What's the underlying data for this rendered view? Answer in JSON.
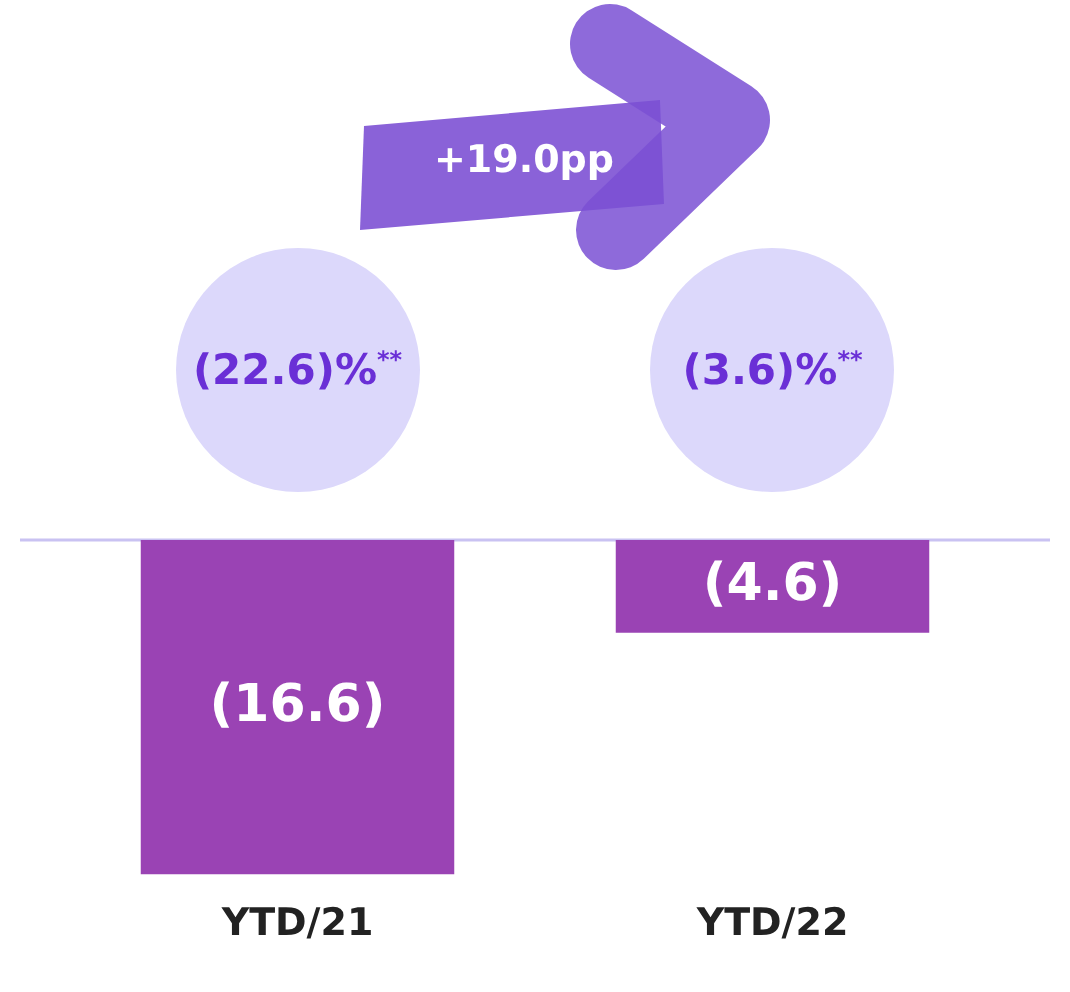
{
  "chart_data": {
    "type": "bar",
    "categories": [
      "YTD/21",
      "YTD/22"
    ],
    "values": [
      -16.6,
      -4.6
    ],
    "color": "#9a43b4",
    "value_labels": [
      "(16.6)",
      "(4.6)"
    ],
    "legend": false,
    "grid": false,
    "annotations": [
      "+19.0pp",
      "(22.6)%$^{**}$",
      "(3.6)%$^{**}$"
    ]
  }
}
